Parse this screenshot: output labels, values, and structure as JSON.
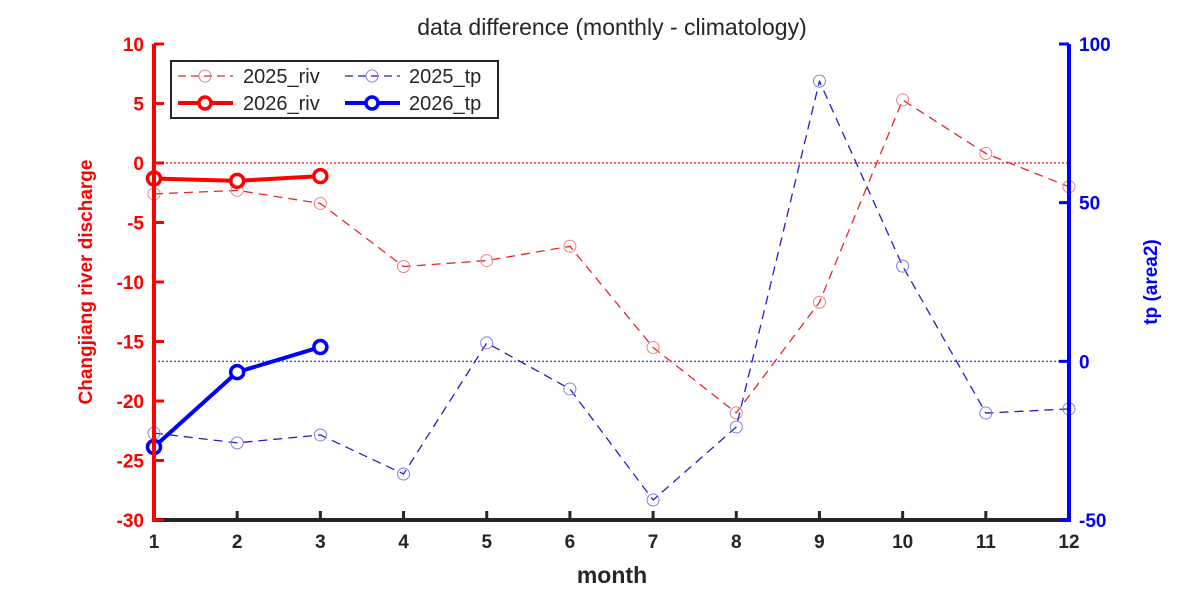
{
  "chart_data": {
    "type": "line",
    "title": "data difference (monthly - climatology)",
    "xlabel": "month",
    "ylabel_left": "Changjiang river discharge",
    "ylabel_right": "tp (area2)",
    "xlim": [
      1,
      12
    ],
    "ylim_left": [
      -30,
      10
    ],
    "ylim_right": [
      -50,
      100
    ],
    "x_ticks": [
      "1",
      "2",
      "3",
      "4",
      "5",
      "6",
      "7",
      "8",
      "9",
      "10",
      "11",
      "12"
    ],
    "y_ticks_left": [
      "10",
      "5",
      "0",
      "-5",
      "-10",
      "-15",
      "-20",
      "-25",
      "-30"
    ],
    "y_ticks_left_values": [
      10,
      5,
      0,
      -5,
      -10,
      -15,
      -20,
      -25,
      -30
    ],
    "y_ticks_right": [
      "100",
      "50",
      "0",
      "-50"
    ],
    "y_ticks_right_values": [
      100,
      50,
      0,
      -50
    ],
    "zero_lines": {
      "left": 0,
      "right": 0
    },
    "legend_position": "top-left",
    "series": [
      {
        "name": "2025_riv",
        "axis": "left",
        "style": "dashed-thin",
        "color": "#e8262a",
        "x": [
          1,
          2,
          3,
          4,
          5,
          6,
          7,
          8,
          9,
          10,
          11,
          12
        ],
        "values": [
          -2.6,
          -2.3,
          -3.4,
          -8.7,
          -8.2,
          -7.0,
          -15.5,
          -21.0,
          -11.7,
          5.3,
          0.8,
          -2.0
        ]
      },
      {
        "name": "2025_tp",
        "axis": "right",
        "style": "dashed-thin",
        "color": "#1f1fcc",
        "x": [
          1,
          2,
          3,
          4,
          5,
          6,
          7,
          8,
          9,
          10,
          11,
          12
        ],
        "values": [
          -22.6,
          -25.7,
          -23.2,
          -35.5,
          5.8,
          -8.7,
          -43.7,
          -20.7,
          88.3,
          30.0,
          -16.3,
          -15.0
        ]
      },
      {
        "name": "2026_riv",
        "axis": "left",
        "style": "solid-thick",
        "color": "#ff0000",
        "x": [
          1,
          2,
          3
        ],
        "values": [
          -1.3,
          -1.5,
          -1.1
        ]
      },
      {
        "name": "2026_tp",
        "axis": "right",
        "style": "solid-thick",
        "color": "#0000ff",
        "x": [
          1,
          2,
          3
        ],
        "values": [
          -27.0,
          -3.4,
          4.5
        ]
      }
    ],
    "colors": {
      "left_axis": "#ff0000",
      "right_axis": "#0000ff",
      "x_axis": "#262626"
    }
  }
}
